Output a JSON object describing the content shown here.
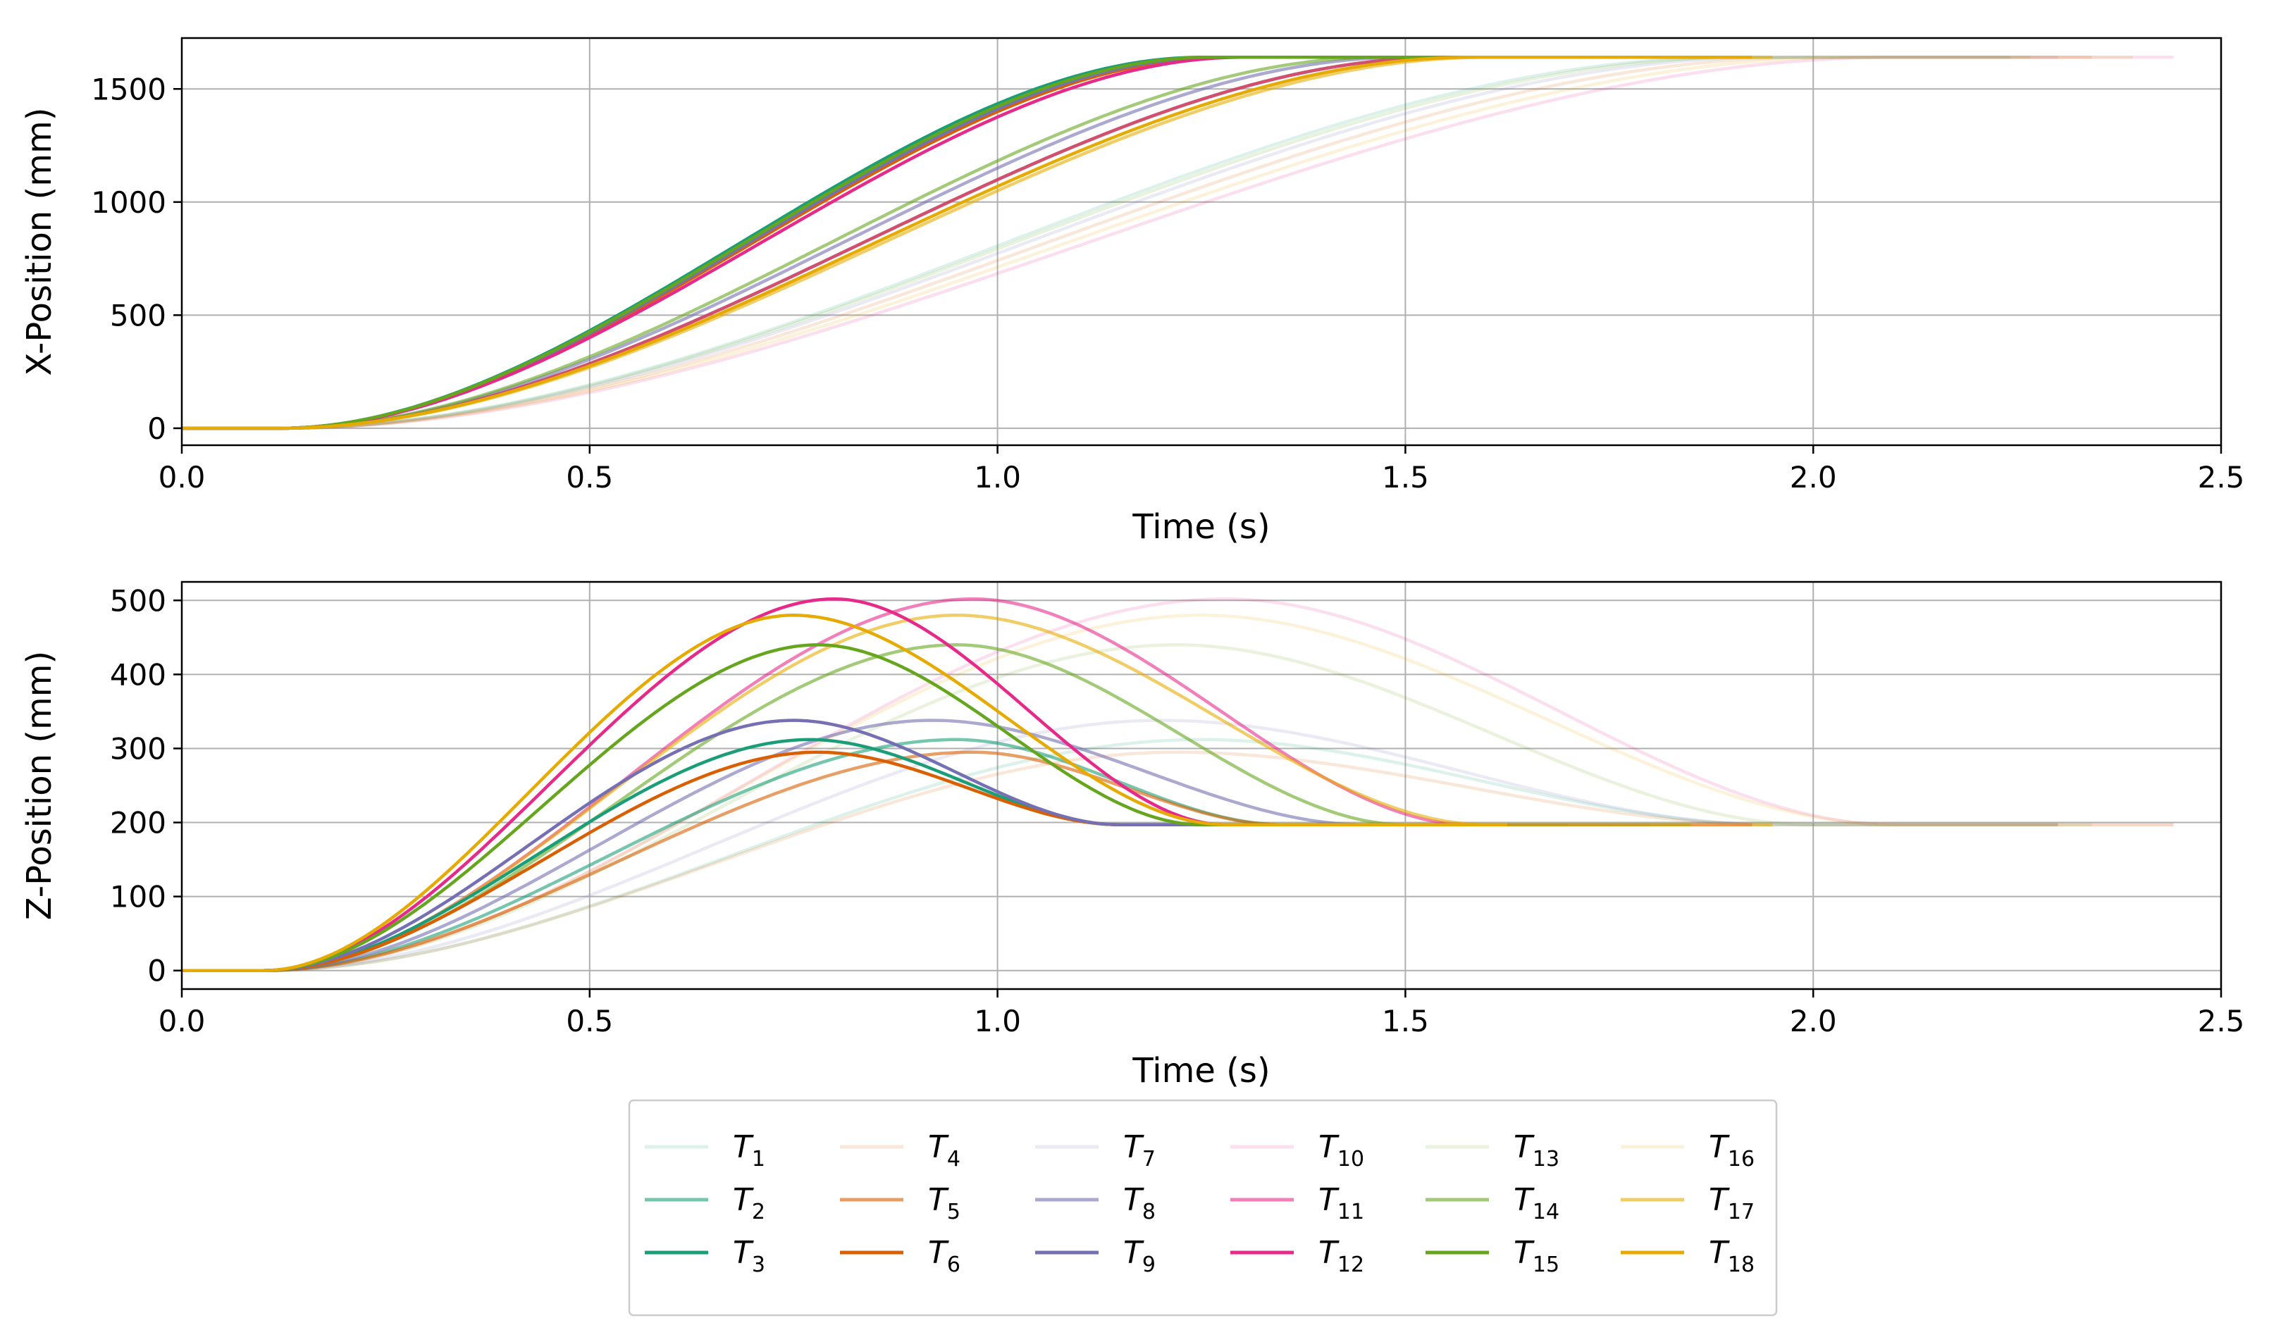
{
  "chart_data": [
    {
      "type": "line",
      "xlabel": "Time (s)",
      "ylabel": "X-Position (mm)",
      "xlim": [
        0.0,
        2.5
      ],
      "ylim": [
        -75,
        1725
      ],
      "xticks": [
        0.0,
        0.5,
        1.0,
        1.5,
        2.0,
        2.5
      ],
      "xtick_labels": [
        "0.0",
        "0.5",
        "1.0",
        "1.5",
        "2.0",
        "2.5"
      ],
      "yticks": [
        0,
        500,
        1000,
        1500
      ],
      "ytick_labels": [
        "0",
        "500",
        "1000",
        "1500"
      ],
      "grid": true,
      "final_value": 1640,
      "model": "sigmoid ramp from 0 to 1640 mm; each trajectory starts moving at t_start and reaches 1640 mm at t_end",
      "series": [
        {
          "name": "T1",
          "t_start": 0.12,
          "t_end": 1.9,
          "color": "#1b9e77",
          "opacity": 0.15
        },
        {
          "name": "T2",
          "t_start": 0.12,
          "t_end": 1.55,
          "color": "#1b9e77",
          "opacity": 0.6
        },
        {
          "name": "T3",
          "t_start": 0.12,
          "t_end": 1.25,
          "color": "#1b9e77",
          "opacity": 1.0
        },
        {
          "name": "T4",
          "t_start": 0.12,
          "t_end": 2.0,
          "color": "#d95f02",
          "opacity": 0.15
        },
        {
          "name": "T5",
          "t_start": 0.12,
          "t_end": 1.55,
          "color": "#d95f02",
          "opacity": 0.6
        },
        {
          "name": "T6",
          "t_start": 0.12,
          "t_end": 1.28,
          "color": "#d95f02",
          "opacity": 1.0
        },
        {
          "name": "T7",
          "t_start": 0.12,
          "t_end": 1.95,
          "color": "#7570b3",
          "opacity": 0.15
        },
        {
          "name": "T8",
          "t_start": 0.12,
          "t_end": 1.5,
          "color": "#7570b3",
          "opacity": 0.6
        },
        {
          "name": "T9",
          "t_start": 0.12,
          "t_end": 1.27,
          "color": "#7570b3",
          "opacity": 1.0
        },
        {
          "name": "T10",
          "t_start": 0.12,
          "t_end": 2.1,
          "color": "#e7298a",
          "opacity": 0.15
        },
        {
          "name": "T11",
          "t_start": 0.12,
          "t_end": 1.55,
          "color": "#e7298a",
          "opacity": 0.6
        },
        {
          "name": "T12",
          "t_start": 0.12,
          "t_end": 1.3,
          "color": "#e7298a",
          "opacity": 1.0
        },
        {
          "name": "T13",
          "t_start": 0.12,
          "t_end": 1.92,
          "color": "#66a61e",
          "opacity": 0.15
        },
        {
          "name": "T14",
          "t_start": 0.12,
          "t_end": 1.47,
          "color": "#66a61e",
          "opacity": 0.6
        },
        {
          "name": "T15",
          "t_start": 0.12,
          "t_end": 1.26,
          "color": "#66a61e",
          "opacity": 1.0
        },
        {
          "name": "T16",
          "t_start": 0.12,
          "t_end": 2.05,
          "color": "#e6ab02",
          "opacity": 0.15
        },
        {
          "name": "T17",
          "t_start": 0.12,
          "t_end": 1.6,
          "color": "#e6ab02",
          "opacity": 0.6
        },
        {
          "name": "T18",
          "t_start": 0.12,
          "t_end": 1.58,
          "color": "#e6ab02",
          "opacity": 1.0
        }
      ]
    },
    {
      "type": "line",
      "xlabel": "Time (s)",
      "ylabel": "Z-Position (mm)",
      "xlim": [
        0.0,
        2.5
      ],
      "ylim": [
        -25,
        525
      ],
      "xticks": [
        0.0,
        0.5,
        1.0,
        1.5,
        2.0,
        2.5
      ],
      "xtick_labels": [
        "0.0",
        "0.5",
        "1.0",
        "1.5",
        "2.0",
        "2.5"
      ],
      "yticks": [
        0,
        100,
        200,
        300,
        400,
        500
      ],
      "ytick_labels": [
        "0",
        "100",
        "200",
        "300",
        "400",
        "500"
      ],
      "grid": true,
      "final_value": 197,
      "model": "rise from 0 to peak at t_peak, then descend to 197 mm by t_end",
      "series": [
        {
          "name": "T1",
          "peak": 312,
          "t_peak": 1.25,
          "t_end": 1.95,
          "color": "#1b9e77",
          "opacity": 0.15
        },
        {
          "name": "T2",
          "peak": 312,
          "t_peak": 0.95,
          "t_end": 1.35,
          "color": "#1b9e77",
          "opacity": 0.6
        },
        {
          "name": "T3",
          "peak": 312,
          "t_peak": 0.77,
          "t_end": 1.15,
          "color": "#1b9e77",
          "opacity": 1.0
        },
        {
          "name": "T4",
          "peak": 295,
          "t_peak": 1.22,
          "t_end": 1.95,
          "color": "#d95f02",
          "opacity": 0.15
        },
        {
          "name": "T5",
          "peak": 295,
          "t_peak": 0.97,
          "t_end": 1.35,
          "color": "#d95f02",
          "opacity": 0.6
        },
        {
          "name": "T6",
          "peak": 295,
          "t_peak": 0.78,
          "t_end": 1.15,
          "color": "#d95f02",
          "opacity": 1.0
        },
        {
          "name": "T7",
          "peak": 338,
          "t_peak": 1.2,
          "t_end": 1.95,
          "color": "#7570b3",
          "opacity": 0.15
        },
        {
          "name": "T8",
          "peak": 338,
          "t_peak": 0.92,
          "t_end": 1.45,
          "color": "#7570b3",
          "opacity": 0.6
        },
        {
          "name": "T9",
          "peak": 338,
          "t_peak": 0.75,
          "t_end": 1.15,
          "color": "#7570b3",
          "opacity": 1.0
        },
        {
          "name": "T10",
          "peak": 502,
          "t_peak": 1.28,
          "t_end": 2.1,
          "color": "#e7298a",
          "opacity": 0.15
        },
        {
          "name": "T11",
          "peak": 502,
          "t_peak": 0.97,
          "t_end": 1.58,
          "color": "#e7298a",
          "opacity": 0.6
        },
        {
          "name": "T12",
          "peak": 502,
          "t_peak": 0.8,
          "t_end": 1.28,
          "color": "#e7298a",
          "opacity": 1.0
        },
        {
          "name": "T13",
          "peak": 440,
          "t_peak": 1.22,
          "t_end": 2.0,
          "color": "#66a61e",
          "opacity": 0.15
        },
        {
          "name": "T14",
          "peak": 440,
          "t_peak": 0.95,
          "t_end": 1.5,
          "color": "#66a61e",
          "opacity": 0.6
        },
        {
          "name": "T15",
          "peak": 440,
          "t_peak": 0.78,
          "t_end": 1.25,
          "color": "#66a61e",
          "opacity": 1.0
        },
        {
          "name": "T16",
          "peak": 480,
          "t_peak": 1.25,
          "t_end": 2.1,
          "color": "#e6ab02",
          "opacity": 0.15
        },
        {
          "name": "T17",
          "peak": 480,
          "t_peak": 0.95,
          "t_end": 1.6,
          "color": "#e6ab02",
          "opacity": 0.6
        },
        {
          "name": "T18",
          "peak": 480,
          "t_peak": 0.75,
          "t_end": 1.28,
          "color": "#e6ab02",
          "opacity": 1.0
        }
      ]
    }
  ],
  "legend": {
    "placement": "bottom-center",
    "columns": 6,
    "entries": [
      {
        "label": "T",
        "sub": "1"
      },
      {
        "label": "T",
        "sub": "2"
      },
      {
        "label": "T",
        "sub": "3"
      },
      {
        "label": "T",
        "sub": "4"
      },
      {
        "label": "T",
        "sub": "5"
      },
      {
        "label": "T",
        "sub": "6"
      },
      {
        "label": "T",
        "sub": "7"
      },
      {
        "label": "T",
        "sub": "8"
      },
      {
        "label": "T",
        "sub": "9"
      },
      {
        "label": "T",
        "sub": "10"
      },
      {
        "label": "T",
        "sub": "11"
      },
      {
        "label": "T",
        "sub": "12"
      },
      {
        "label": "T",
        "sub": "13"
      },
      {
        "label": "T",
        "sub": "14"
      },
      {
        "label": "T",
        "sub": "15"
      },
      {
        "label": "T",
        "sub": "16"
      },
      {
        "label": "T",
        "sub": "17"
      },
      {
        "label": "T",
        "sub": "18"
      }
    ]
  }
}
